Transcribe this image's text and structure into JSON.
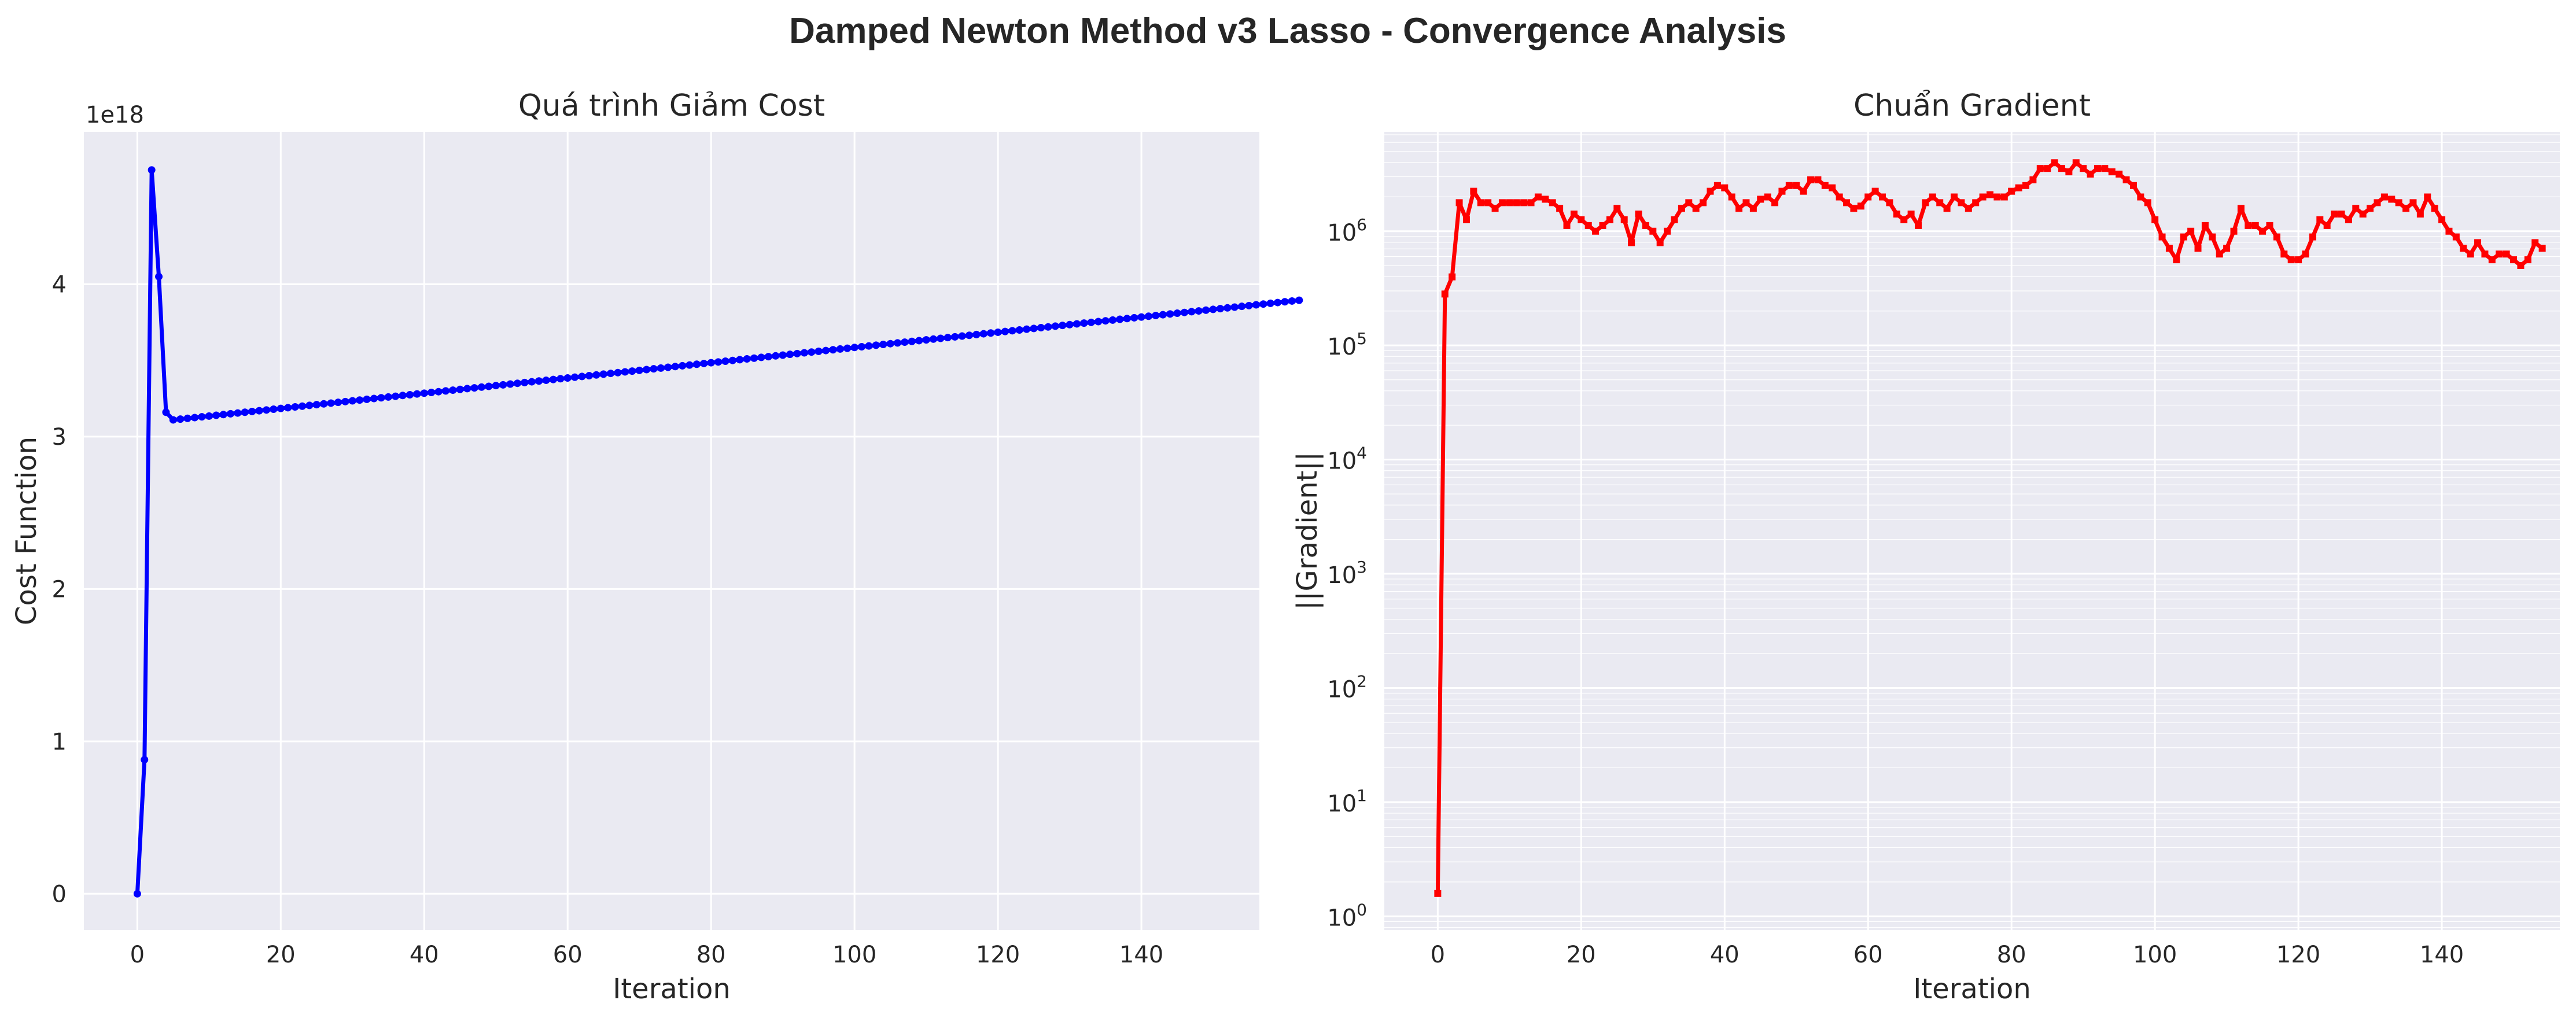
{
  "figure_title": "Damped Newton Method v3 Lasso - Convergence Analysis",
  "chart_data": [
    {
      "type": "line",
      "title": "Quá trình Giảm Cost",
      "xlabel": "Iteration",
      "ylabel": "Cost Function",
      "y_offset_label": "1e18",
      "xlim": [
        -7.45,
        156.45
      ],
      "ylim": [
        -0.238,
        5.0
      ],
      "x_ticks": [
        0,
        20,
        40,
        60,
        80,
        100,
        120,
        140
      ],
      "y_ticks": [
        0,
        1,
        2,
        3,
        4
      ],
      "grid": true,
      "color": "#0000ff",
      "marker": "circle",
      "series": [
        {
          "x_start": 0,
          "x_step": 1,
          "values": [
            0,
            0.88,
            4.75,
            4.05,
            3.16,
            3.11,
            3.115,
            3.12,
            3.125,
            3.13,
            3.135,
            3.14,
            3.145,
            3.15,
            3.155,
            3.16,
            3.165,
            3.17,
            3.175,
            3.18,
            3.185,
            3.19,
            3.195,
            3.2,
            3.205,
            3.21,
            3.215,
            3.22,
            3.225,
            3.23,
            3.235,
            3.24,
            3.245,
            3.25,
            3.255,
            3.26,
            3.265,
            3.27,
            3.275,
            3.28,
            3.285,
            3.29,
            3.295,
            3.3,
            3.305,
            3.31,
            3.315,
            3.32,
            3.325,
            3.33,
            3.335,
            3.34,
            3.345,
            3.35,
            3.355,
            3.36,
            3.365,
            3.37,
            3.375,
            3.38,
            3.385,
            3.39,
            3.395,
            3.4,
            3.405,
            3.41,
            3.415,
            3.42,
            3.425,
            3.43,
            3.435,
            3.44,
            3.445,
            3.45,
            3.455,
            3.46,
            3.465,
            3.47,
            3.475,
            3.48,
            3.485,
            3.49,
            3.495,
            3.5,
            3.505,
            3.51,
            3.515,
            3.52,
            3.525,
            3.53,
            3.535,
            3.54,
            3.545,
            3.55,
            3.555,
            3.56,
            3.565,
            3.57,
            3.575,
            3.58,
            3.585,
            3.59,
            3.595,
            3.6,
            3.605,
            3.61,
            3.615,
            3.62,
            3.625,
            3.63,
            3.635,
            3.64,
            3.645,
            3.65,
            3.655,
            3.66,
            3.665,
            3.67,
            3.675,
            3.68,
            3.685,
            3.69,
            3.695,
            3.7,
            3.705,
            3.71,
            3.715,
            3.72,
            3.725,
            3.73,
            3.735,
            3.74,
            3.745,
            3.75,
            3.755,
            3.76,
            3.765,
            3.77,
            3.775,
            3.78,
            3.785,
            3.79,
            3.795,
            3.8,
            3.805,
            3.81,
            3.815,
            3.82,
            3.825,
            3.83,
            3.835,
            3.84,
            3.845,
            3.85,
            3.855,
            3.86,
            3.865,
            3.87,
            3.875,
            3.88,
            3.885,
            3.89,
            3.895
          ]
        }
      ]
    },
    {
      "type": "line",
      "title": "Chuẩn Gradient",
      "xlabel": "Iteration",
      "ylabel": "||Gradient||",
      "yscale": "log",
      "xlim": [
        -7.45,
        156.45
      ],
      "ylim_log10": [
        -0.12,
        6.87
      ],
      "x_ticks": [
        0,
        20,
        40,
        60,
        80,
        100,
        120,
        140
      ],
      "y_ticks_exponents": [
        0,
        1,
        2,
        3,
        4,
        5,
        6
      ],
      "y_tick_base": "10",
      "grid": true,
      "color": "#ff0000",
      "marker": "square",
      "series": [
        {
          "x_start": 0,
          "x_step": 1,
          "log10_values": [
            0.2,
            5.45,
            5.6,
            6.25,
            6.1,
            6.35,
            6.25,
            6.25,
            6.2,
            6.25,
            6.25,
            6.25,
            6.25,
            6.25,
            6.3,
            6.28,
            6.25,
            6.2,
            6.05,
            6.15,
            6.1,
            6.05,
            6.0,
            6.05,
            6.1,
            6.2,
            6.1,
            5.9,
            6.15,
            6.05,
            6.0,
            5.9,
            6.0,
            6.1,
            6.2,
            6.25,
            6.2,
            6.25,
            6.35,
            6.4,
            6.38,
            6.3,
            6.2,
            6.25,
            6.2,
            6.28,
            6.3,
            6.25,
            6.35,
            6.4,
            6.4,
            6.35,
            6.45,
            6.45,
            6.4,
            6.38,
            6.3,
            6.25,
            6.2,
            6.22,
            6.3,
            6.35,
            6.3,
            6.25,
            6.15,
            6.1,
            6.15,
            6.05,
            6.25,
            6.3,
            6.25,
            6.2,
            6.3,
            6.25,
            6.2,
            6.25,
            6.3,
            6.32,
            6.3,
            6.3,
            6.35,
            6.38,
            6.4,
            6.45,
            6.55,
            6.55,
            6.6,
            6.55,
            6.52,
            6.6,
            6.55,
            6.5,
            6.55,
            6.55,
            6.52,
            6.5,
            6.45,
            6.4,
            6.3,
            6.25,
            6.1,
            5.95,
            5.85,
            5.75,
            5.95,
            6.0,
            5.85,
            6.05,
            5.95,
            5.8,
            5.85,
            6.0,
            6.2,
            6.05,
            6.05,
            6.0,
            6.05,
            5.95,
            5.8,
            5.75,
            5.75,
            5.8,
            5.95,
            6.1,
            6.05,
            6.15,
            6.15,
            6.1,
            6.2,
            6.15,
            6.2,
            6.25,
            6.3,
            6.28,
            6.25,
            6.2,
            6.25,
            6.15,
            6.3,
            6.2,
            6.1,
            6.0,
            5.95,
            5.85,
            5.8,
            5.9,
            5.8,
            5.75,
            5.8,
            5.8,
            5.75,
            5.7,
            5.75,
            5.9,
            5.85
          ]
        }
      ]
    }
  ]
}
